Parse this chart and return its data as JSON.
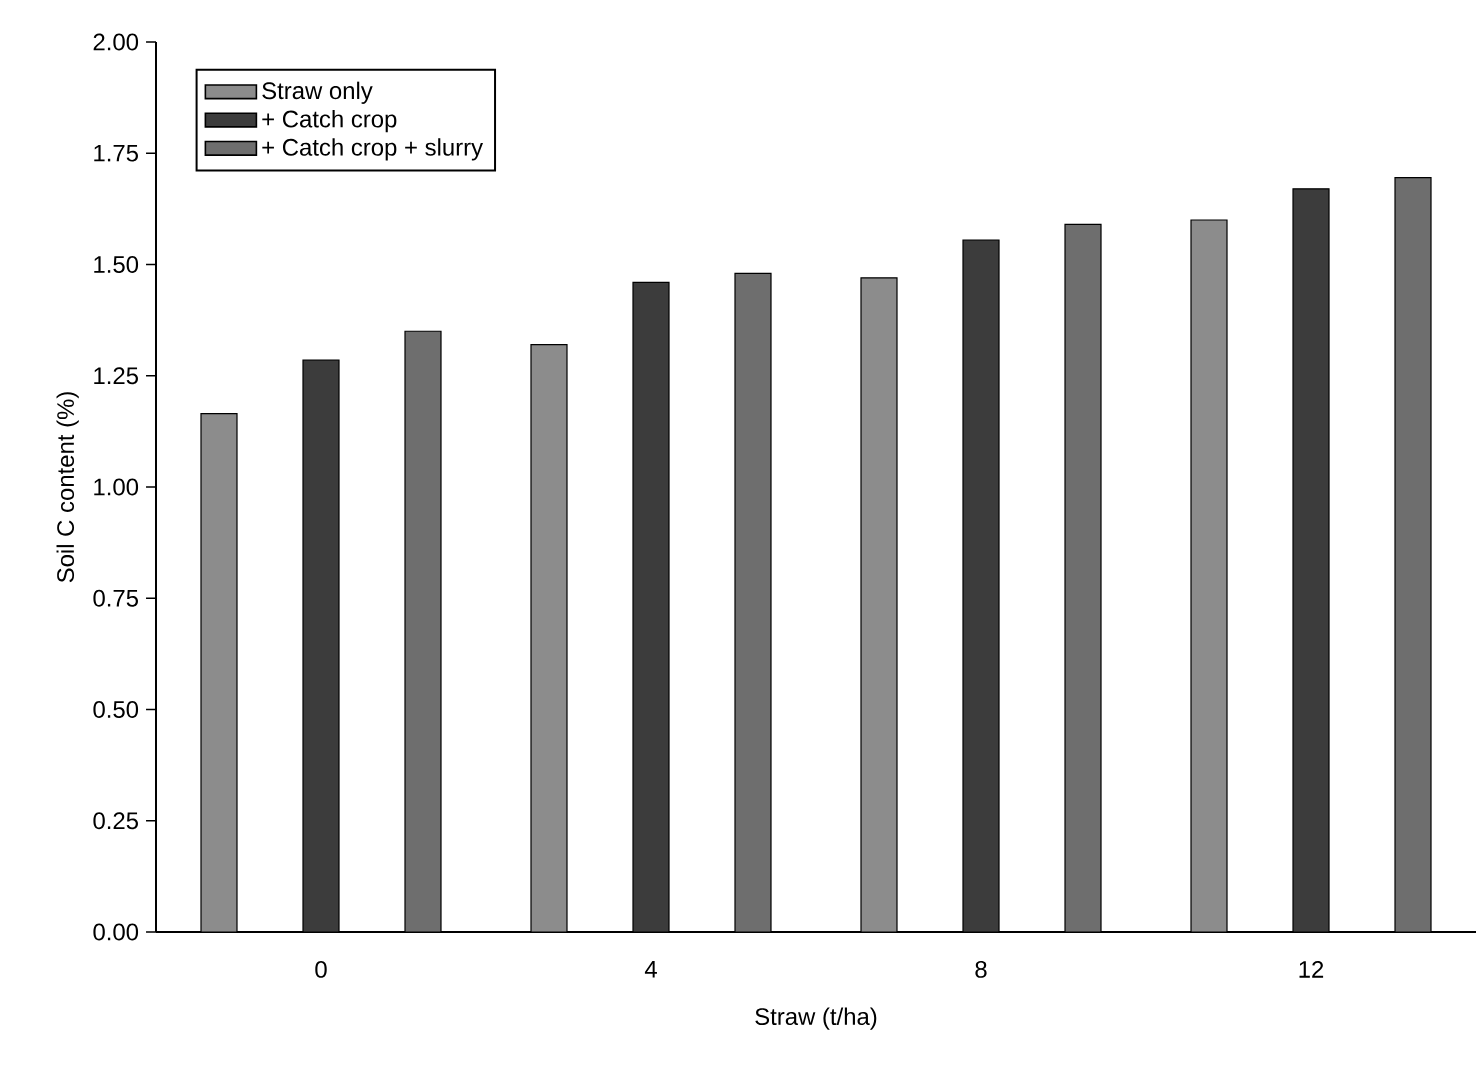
{
  "chart_data": {
    "type": "bar",
    "xlabel": "Straw (t/ha)",
    "ylabel": "Soil C content (%)",
    "categories": [
      "0",
      "4",
      "8",
      "12"
    ],
    "series": [
      {
        "name": "Straw only",
        "color": "#8c8c8c",
        "values": [
          1.165,
          1.32,
          1.47,
          1.6
        ]
      },
      {
        "name": "+ Catch crop",
        "color": "#3c3c3c",
        "values": [
          1.285,
          1.46,
          1.555,
          1.67
        ]
      },
      {
        "name": "+ Catch crop + slurry",
        "color": "#6e6e6e",
        "values": [
          1.35,
          1.48,
          1.59,
          1.695
        ]
      }
    ],
    "ylim": [
      0,
      2
    ],
    "yticks": [
      {
        "value": 0,
        "label": "0.00"
      },
      {
        "value": 0.25,
        "label": "0.25"
      },
      {
        "value": 0.5,
        "label": "0.50"
      },
      {
        "value": 0.75,
        "label": "0.75"
      },
      {
        "value": 1,
        "label": "1.00"
      },
      {
        "value": 1.25,
        "label": "1.25"
      },
      {
        "value": 1.5,
        "label": "1.50"
      },
      {
        "value": 1.75,
        "label": "1.75"
      },
      {
        "value": 2,
        "label": "2.00"
      }
    ],
    "legend": "top left",
    "grid": false
  }
}
